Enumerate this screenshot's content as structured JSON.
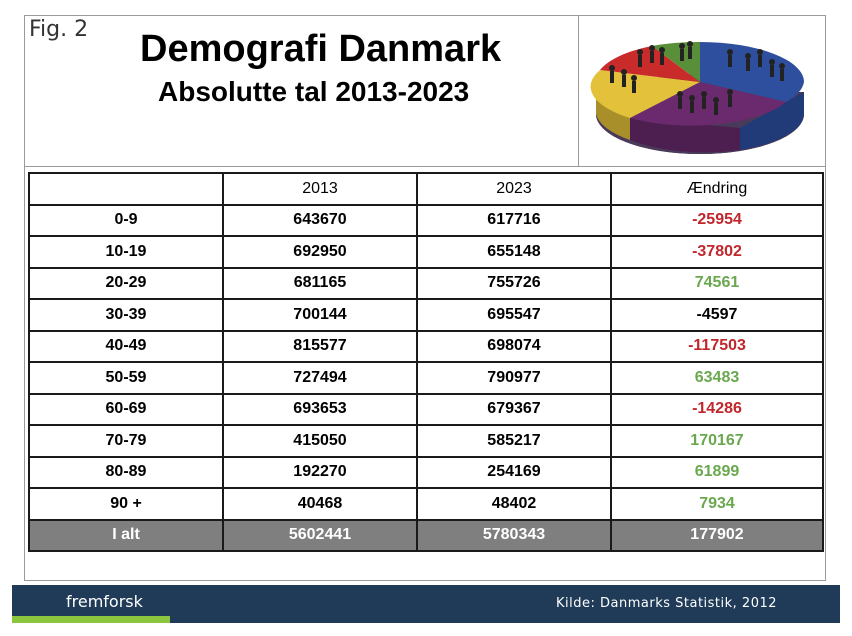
{
  "header": {
    "fig_label": "Fig. 2",
    "title": "Demografi Danmark",
    "subtitle": "Absolutte tal 2013-2023"
  },
  "table": {
    "columns": [
      "",
      "2013",
      "2023",
      "Ændring"
    ],
    "rows": [
      {
        "age": "0-9",
        "y2013": "643670",
        "y2023": "617716",
        "change": "-25954",
        "trend": "neg"
      },
      {
        "age": "10-19",
        "y2013": "692950",
        "y2023": "655148",
        "change": "-37802",
        "trend": "neg"
      },
      {
        "age": "20-29",
        "y2013": "681165",
        "y2023": "755726",
        "change": "74561",
        "trend": "pos"
      },
      {
        "age": "30-39",
        "y2013": "700144",
        "y2023": "695547",
        "change": "-4597",
        "trend": "neutral"
      },
      {
        "age": "40-49",
        "y2013": "815577",
        "y2023": "698074",
        "change": "-117503",
        "trend": "neg"
      },
      {
        "age": "50-59",
        "y2013": "727494",
        "y2023": "790977",
        "change": "63483",
        "trend": "pos"
      },
      {
        "age": "60-69",
        "y2013": "693653",
        "y2023": "679367",
        "change": "-14286",
        "trend": "neg"
      },
      {
        "age": "70-79",
        "y2013": "415050",
        "y2023": "585217",
        "change": "170167",
        "trend": "pos"
      },
      {
        "age": "80-89",
        "y2013": "192270",
        "y2023": "254169",
        "change": "61899",
        "trend": "pos"
      },
      {
        "age": "90 +",
        "y2013": "40468",
        "y2023": "48402",
        "change": "7934",
        "trend": "pos"
      }
    ],
    "total": {
      "age": "I alt",
      "y2013": "5602441",
      "y2023": "5780343",
      "change": "177902"
    }
  },
  "footer": {
    "brand": "fremforsk",
    "source": "Kilde: Danmarks Statistik, 2012"
  },
  "colors": {
    "negative": "#c0272d",
    "positive": "#6aa84f",
    "footer_bg": "#1f3b58",
    "footer_accent": "#8cc63f",
    "total_row_bg": "#7f7f7f"
  },
  "illustration": {
    "icon": "people-pie-chart-icon",
    "slice_colors": [
      "#2e4f9e",
      "#6b2a6e",
      "#e3c13b",
      "#c92a2a",
      "#5a8f3a"
    ]
  }
}
